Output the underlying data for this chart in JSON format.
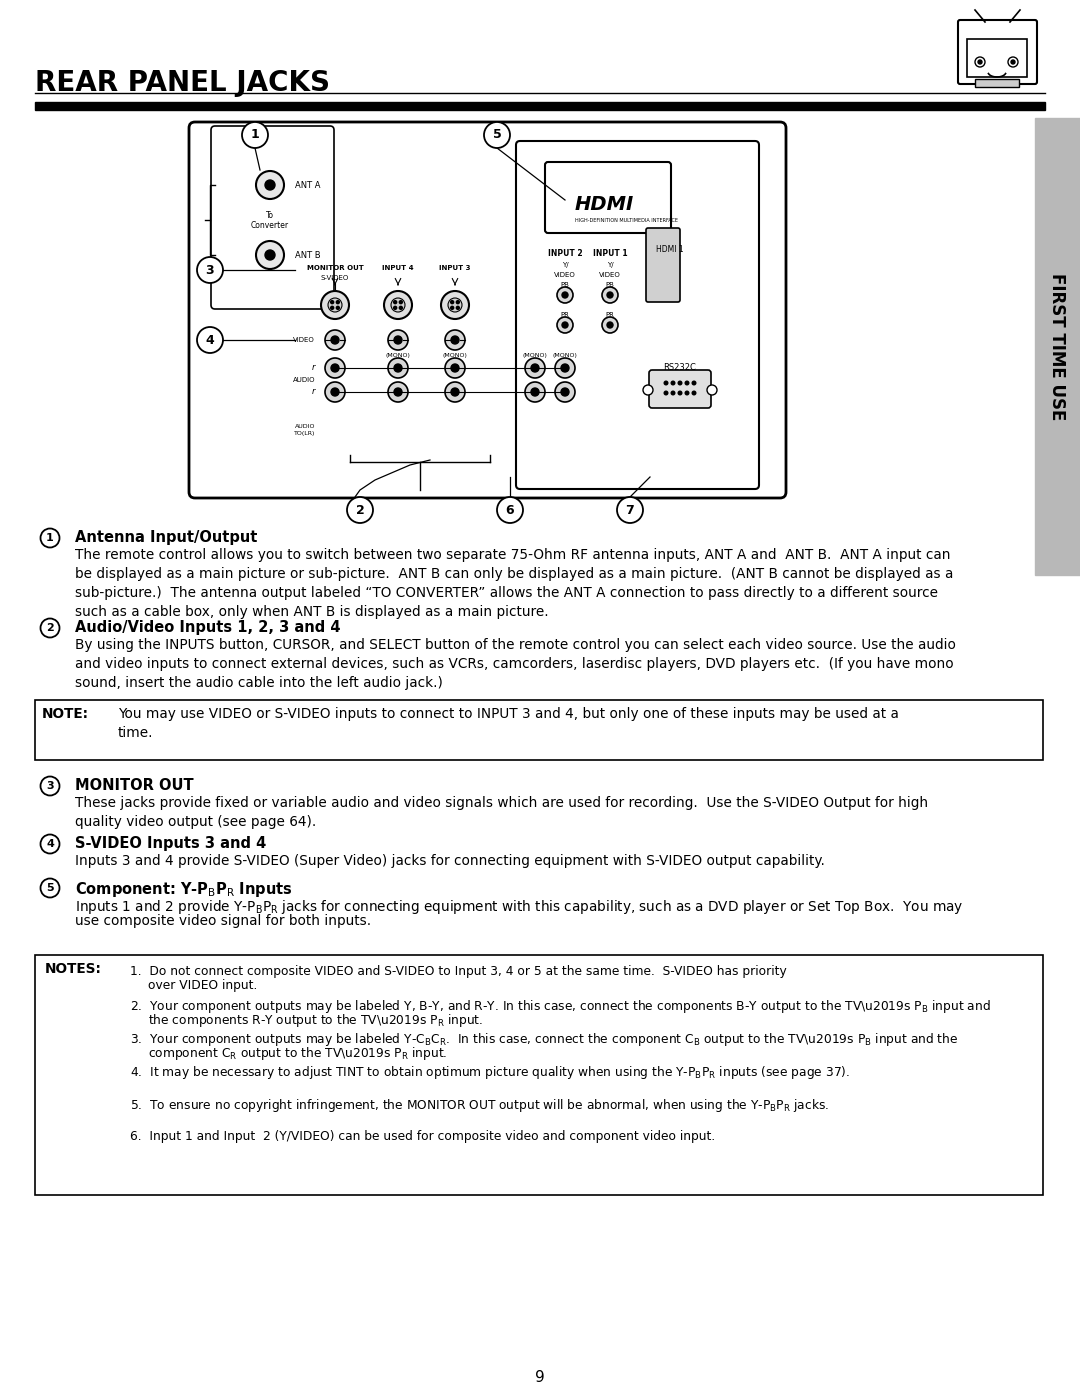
{
  "title": "REAR PANEL JACKS",
  "sidebar_text": "FIRST TIME USE",
  "page_number": "9",
  "bg_color": "#ffffff",
  "text_color": "#000000",
  "section1_head": "Antenna Input/Output",
  "section1_body": "The remote control allows you to switch between two separate 75-Ohm RF antenna inputs, ANT A and  ANT B.  ANT A input can\nbe displayed as a main picture or sub-picture.  ANT B can only be displayed as a main picture.  (ANT B cannot be displayed as a\nsub-picture.)  The antenna output labeled “TO CONVERTER” allows the ANT A connection to pass directly to a different source\nsuch as a cable box, only when ANT B is displayed as a main picture.",
  "section2_head": "Audio/Video Inputs 1, 2, 3 and 4",
  "section2_body": "By using the INPUTS button, CURSOR, and SELECT button of the remote control you can select each video source. Use the audio\nand video inputs to connect external devices, such as VCRs, camcorders, laserdisc players, DVD players etc.  (If you have mono\nsound, insert the audio cable into the left audio jack.)",
  "note_label": "NOTE:",
  "note_text": "You may use VIDEO or S-VIDEO inputs to connect to INPUT 3 and 4, but only one of these inputs may be used at a\ntime.",
  "section3_head": "MONITOR OUT",
  "section3_body": "These jacks provide fixed or variable audio and video signals which are used for recording.  Use the S-VIDEO Output for high\nquality video output (see page 64).",
  "section4_head": "S-VIDEO Inputs 3 and 4",
  "section4_body": "Inputs 3 and 4 provide S-VIDEO (Super Video) jacks for connecting equipment with S-VIDEO output capability.",
  "section5_head": "Component: Y-P$_B$P$_R$ Inputs",
  "section5_body1": "Inputs 1 and 2 provide Y-P$_B$P$_R$ jacks for connecting equipment with this capability, such as a DVD player or Set Top Box.  You may",
  "section5_body2": "use composite video signal for both inputs.",
  "notes_label": "NOTES:",
  "note1": "1.  Do not connect composite VIDEO and S-VIDEO to Input 3, 4 or 5 at the same time.  S-VIDEO has priority",
  "note1b": "      over VIDEO input.",
  "note2a": "2.  Your component outputs may be labeled Y, B-Y, and R-Y. In this case, connect the components B-Y output to the TV’s P",
  "note2b": "B",
  "note2c": " input and",
  "note2d": "      the components R-Y output to the TV’s P",
  "note2e": "R",
  "note2f": " input.",
  "note3a": "3.  Your component outputs may be labeled Y-C",
  "note3b": "B",
  "note3c": "C",
  "note3d": "R",
  "note3e": ".  In this case, connect the component C",
  "note3f": "B",
  "note3g": " output to the TV’s P",
  "note3h": "B",
  "note3i": " input and the",
  "note3j": "      component C",
  "note3k": "R",
  "note3l": " output to the TV’s P",
  "note3m": "R",
  "note3n": " input.",
  "note4": "4.  It may be necessary to adjust TINT to obtain optimum picture quality when using the Y-P",
  "note4b": "B",
  "note4c": "P",
  "note4d": "R",
  "note4e": " inputs (see page 37).",
  "note5": "5.  To ensure no copyright infringement, the MONITOR OUT output will be abnormal, when using the Y-P",
  "note5b": "B",
  "note5c": "P",
  "note5d": "R",
  "note5e": " jacks.",
  "note6": "6.  Input 1 and Input  2 (Y/VIDEO) can be used for composite video and component video input."
}
